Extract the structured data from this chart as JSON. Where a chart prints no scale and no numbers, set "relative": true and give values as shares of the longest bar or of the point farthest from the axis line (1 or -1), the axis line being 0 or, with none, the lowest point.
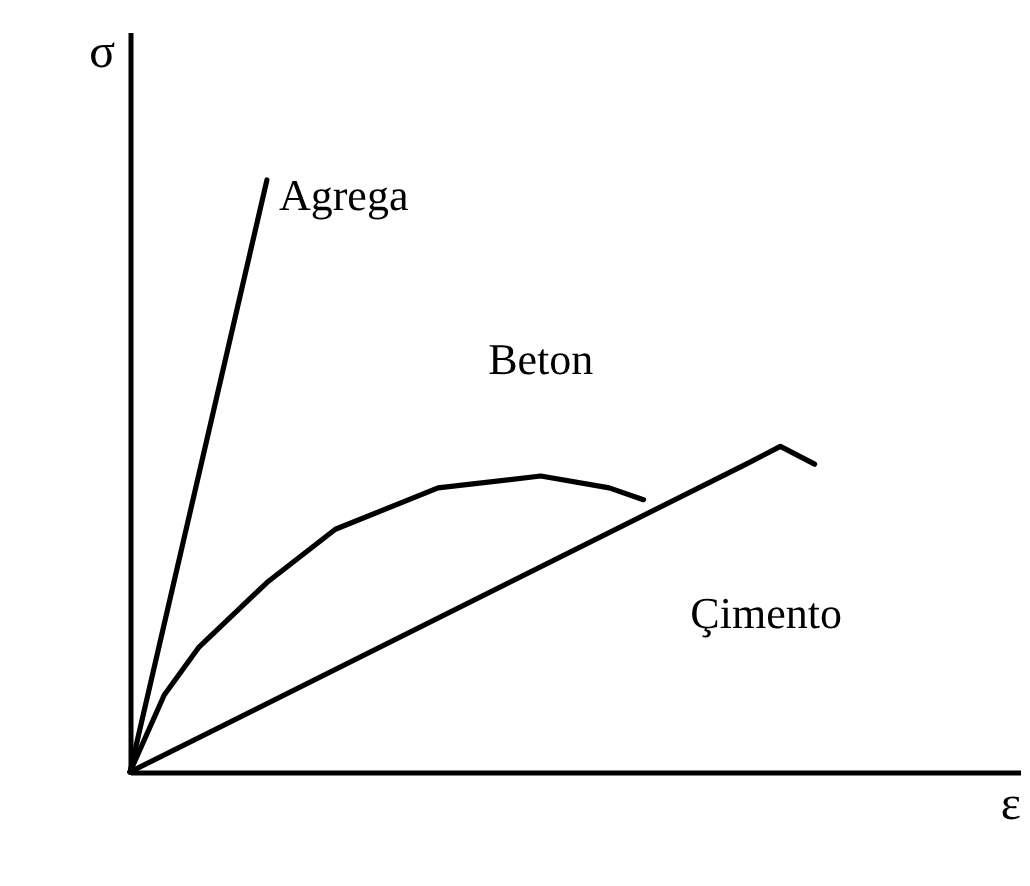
{
  "chart_data": {
    "type": "line",
    "relative": true,
    "xlabel": "ε",
    "ylabel": "σ",
    "tick_labels": false,
    "categories": [
      null,
      null,
      null,
      null,
      null,
      null,
      null,
      null,
      null,
      null,
      null,
      null,
      null,
      null,
      null,
      null,
      null,
      null,
      null,
      null,
      null,
      null,
      null,
      null,
      null,
      null,
      null
    ],
    "series": [
      {
        "name": "Agrega",
        "color": "#000000",
        "values": [
          0,
          null,
          null,
          null,
          1,
          null,
          null,
          null,
          null,
          null,
          null,
          null,
          null,
          null,
          null,
          null,
          null,
          null,
          null,
          null,
          null,
          null,
          null,
          null,
          null,
          null,
          null
        ]
      },
      {
        "name": "Beton",
        "color": "#000000",
        "values": [
          0,
          0.13,
          0.21,
          null,
          0.32,
          null,
          0.41,
          null,
          null,
          0.48,
          null,
          null,
          0.5,
          null,
          0.48,
          0.46,
          null,
          null,
          null,
          null,
          null,
          null,
          null,
          null,
          null,
          null,
          null
        ]
      },
      {
        "name": "Çimento",
        "color": "#000000",
        "values": [
          0,
          null,
          null,
          null,
          null,
          null,
          null,
          null,
          null,
          null,
          null,
          null,
          null,
          null,
          null,
          null,
          null,
          null,
          0.52,
          0.55,
          0.52,
          null,
          null,
          null,
          null,
          null,
          null
        ]
      }
    ]
  }
}
